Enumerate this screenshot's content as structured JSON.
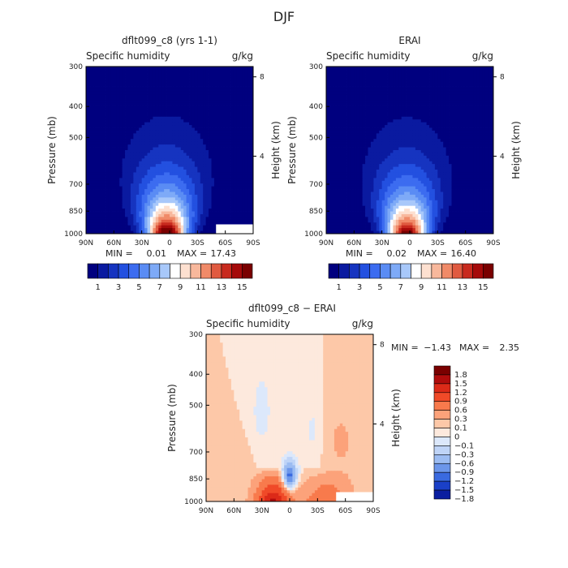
{
  "page_title": "DJF",
  "chart_data": [
    {
      "type": "heatmap",
      "title": "dflt099_c8 (yrs 1-1)",
      "subtitle_left": "Specific humidity",
      "subtitle_right": "g/kg",
      "xlabel": "",
      "ylabel": "Pressure (mb)",
      "ylabel_right": "Height (km)",
      "x_ticks": [
        "90N",
        "60N",
        "30N",
        "0",
        "30S",
        "60S",
        "90S"
      ],
      "y_ticks": [
        "300",
        "400",
        "500",
        "700",
        "850",
        "1000"
      ],
      "y_ticks_right": [
        "8",
        "4"
      ],
      "stats": {
        "min_label": "MIN =",
        "min": "0.01",
        "max_label": "MAX =",
        "max": "17.43"
      },
      "colorbar_labels": [
        "1",
        "3",
        "5",
        "7",
        "9",
        "11",
        "13",
        "15"
      ],
      "field": {
        "peak_lat": 3,
        "peak_value": 17.43,
        "surface_mask": "right"
      }
    },
    {
      "type": "heatmap",
      "title": "ERAI",
      "subtitle_left": "Specific humidity",
      "subtitle_right": "g/kg",
      "xlabel": "",
      "ylabel": "Pressure (mb)",
      "ylabel_right": "Height (km)",
      "x_ticks": [
        "90N",
        "60N",
        "30N",
        "0",
        "30S",
        "60S",
        "90S"
      ],
      "y_ticks": [
        "300",
        "400",
        "500",
        "700",
        "850",
        "1000"
      ],
      "y_ticks_right": [
        "8",
        "4"
      ],
      "stats": {
        "min_label": "MIN =",
        "min": "0.02",
        "max_label": "MAX =",
        "max": "16.40"
      },
      "colorbar_labels": [
        "1",
        "3",
        "5",
        "7",
        "9",
        "11",
        "13",
        "15"
      ],
      "field": {
        "peak_lat": 3,
        "peak_value": 16.4,
        "surface_mask": "none"
      }
    },
    {
      "type": "heatmap",
      "title": "dflt099_c8 − ERAI",
      "subtitle_left": "Specific humidity",
      "subtitle_right": "g/kg",
      "xlabel": "",
      "ylabel": "Pressure (mb)",
      "ylabel_right": "Height (km)",
      "x_ticks": [
        "90N",
        "60N",
        "30N",
        "0",
        "30S",
        "60S",
        "90S"
      ],
      "y_ticks": [
        "300",
        "400",
        "500",
        "700",
        "850",
        "1000"
      ],
      "y_ticks_right": [
        "8",
        "4"
      ],
      "stats": {
        "min_label": "MIN =",
        "min": "−1.43",
        "max_label": "MAX =",
        "max": "2.35"
      },
      "colorbar_labels": [
        "1.8",
        "1.5",
        "1.2",
        "0.9",
        "0.6",
        "0.3",
        "0.1",
        "0",
        "−0.1",
        "−0.3",
        "−0.6",
        "−0.9",
        "−1.2",
        "−1.5",
        "−1.8"
      ],
      "field": {
        "min_value": -1.43,
        "max_value": 2.35,
        "surface_mask": "right"
      }
    }
  ],
  "colors": {
    "abs_scale": [
      "#00007f",
      "#0a1aa0",
      "#1634c0",
      "#2350e0",
      "#3c6cf0",
      "#5a8cf4",
      "#7eaaf7",
      "#a8c8fa",
      "#ffffff",
      "#fde0d0",
      "#f8b89c",
      "#f08a68",
      "#e05a40",
      "#c82a1e",
      "#a50a0a",
      "#7a0000"
    ],
    "diff_scale": [
      "#7a0000",
      "#b00c0c",
      "#dc2a18",
      "#f04a28",
      "#f87a4c",
      "#fca27a",
      "#fdc8a8",
      "#fde9dd",
      "#dce8fb",
      "#bfd4f7",
      "#9cbcf2",
      "#6c96ea",
      "#3a6ae0",
      "#1a40c8",
      "#0a1ea0"
    ]
  }
}
